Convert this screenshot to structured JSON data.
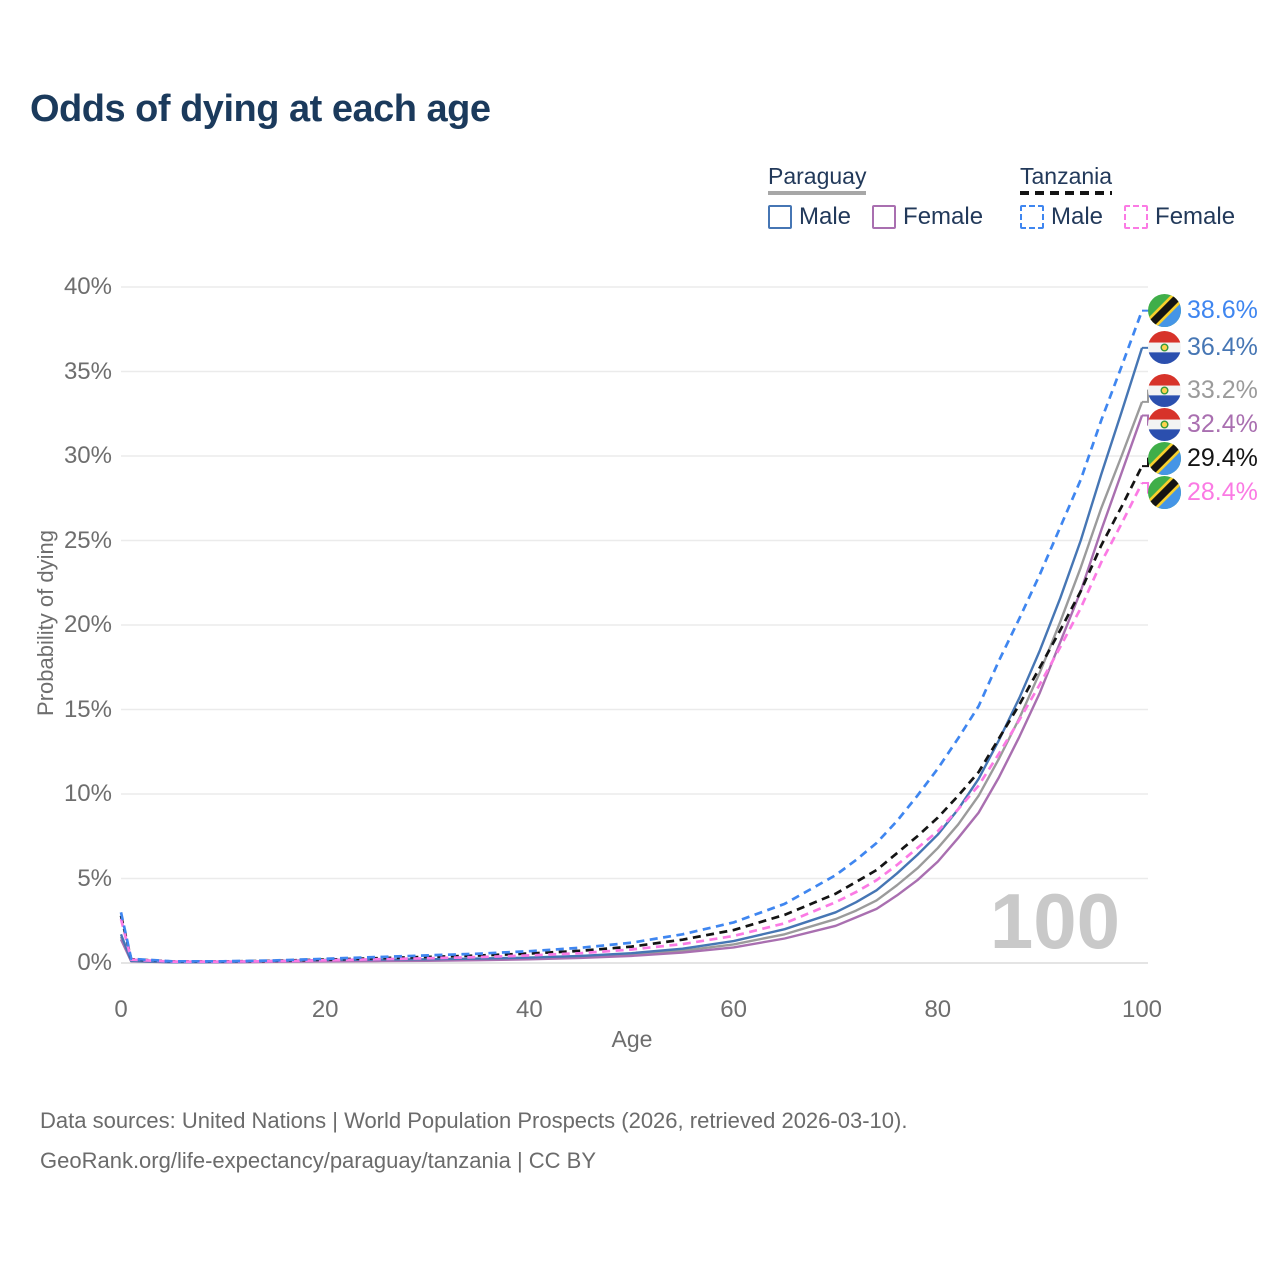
{
  "title": "Odds of dying at each age",
  "watermark_age": "100",
  "footer": {
    "line1": "Data sources: United Nations | World Population Prospects (2026, retrieved 2026-03-10).",
    "line2": "GeoRank.org/life-expectancy/paraguay/tanzania | CC BY"
  },
  "legend": {
    "groups": [
      {
        "country": "Paraguay",
        "line_style": "solid",
        "line_color": "#a7a7a7",
        "items": [
          {
            "label": "Male",
            "color": "#4676b4",
            "dashed": false
          },
          {
            "label": "Female",
            "color": "#a96fb0",
            "dashed": false
          }
        ]
      },
      {
        "country": "Tanzania",
        "line_style": "dashed",
        "line_color": "#141414",
        "items": [
          {
            "label": "Male",
            "color": "#3f86f0",
            "dashed": true
          },
          {
            "label": "Female",
            "color": "#fb7ae4",
            "dashed": true
          }
        ]
      }
    ]
  },
  "chart_data": {
    "type": "line",
    "title": "Odds of dying at each age",
    "xlabel": "Age",
    "ylabel": "Probability of dying",
    "xlim": [
      0,
      100
    ],
    "ylim": [
      0,
      40
    ],
    "x_ticks": [
      0,
      20,
      40,
      60,
      80,
      100
    ],
    "y_ticks": [
      0,
      5,
      10,
      15,
      20,
      25,
      30,
      35,
      40
    ],
    "y_tick_suffix": "%",
    "grid": "horizontal",
    "legend_position": "top-right",
    "age_annotation": "100",
    "ages": [
      0,
      1,
      5,
      10,
      15,
      20,
      25,
      30,
      35,
      40,
      45,
      50,
      55,
      60,
      65,
      70,
      72,
      74,
      76,
      78,
      80,
      82,
      84,
      86,
      88,
      90,
      92,
      94,
      96,
      98,
      100
    ],
    "series": [
      {
        "name": "Paraguay Total",
        "country": "Paraguay",
        "sex": "total",
        "color": "#9b9b9b",
        "dashed": false,
        "end_label": "33.2%",
        "values": [
          1.55,
          0.11,
          0.05,
          0.05,
          0.1,
          0.14,
          0.16,
          0.18,
          0.21,
          0.27,
          0.36,
          0.5,
          0.73,
          1.1,
          1.7,
          2.6,
          3.1,
          3.7,
          4.6,
          5.6,
          6.8,
          8.2,
          9.9,
          12.1,
          14.5,
          17.2,
          20.2,
          23.4,
          26.9,
          30.0,
          33.2
        ]
      },
      {
        "name": "Paraguay Female",
        "country": "Paraguay",
        "sex": "female",
        "color": "#a96fb0",
        "dashed": false,
        "end_label": "32.4%",
        "values": [
          1.4,
          0.1,
          0.04,
          0.04,
          0.07,
          0.09,
          0.11,
          0.13,
          0.17,
          0.22,
          0.3,
          0.42,
          0.62,
          0.92,
          1.45,
          2.2,
          2.7,
          3.2,
          4.0,
          4.9,
          6.0,
          7.4,
          8.9,
          11.0,
          13.4,
          16.0,
          19.0,
          22.0,
          25.6,
          29.0,
          32.4
        ]
      },
      {
        "name": "Paraguay Male",
        "country": "Paraguay",
        "sex": "male",
        "color": "#4676b4",
        "dashed": false,
        "end_label": "36.4%",
        "values": [
          1.7,
          0.12,
          0.05,
          0.06,
          0.12,
          0.18,
          0.2,
          0.22,
          0.26,
          0.32,
          0.42,
          0.58,
          0.85,
          1.3,
          2.0,
          3.0,
          3.6,
          4.3,
          5.3,
          6.4,
          7.6,
          9.1,
          10.9,
          13.2,
          15.7,
          18.5,
          21.6,
          25.0,
          28.9,
          32.6,
          36.4
        ]
      },
      {
        "name": "Tanzania Total",
        "country": "Tanzania",
        "sex": "total",
        "color": "#141414",
        "dashed": true,
        "end_label": "29.4%",
        "values": [
          2.8,
          0.22,
          0.09,
          0.09,
          0.13,
          0.2,
          0.28,
          0.36,
          0.44,
          0.56,
          0.72,
          0.97,
          1.38,
          1.95,
          2.85,
          4.1,
          4.8,
          5.5,
          6.5,
          7.5,
          8.6,
          9.9,
          11.3,
          13.3,
          15.3,
          17.5,
          19.7,
          22.0,
          24.7,
          27.0,
          29.4
        ]
      },
      {
        "name": "Tanzania Female",
        "country": "Tanzania",
        "sex": "female",
        "color": "#fb7ae4",
        "dashed": true,
        "end_label": "28.4%",
        "values": [
          2.6,
          0.2,
          0.08,
          0.08,
          0.11,
          0.16,
          0.22,
          0.28,
          0.35,
          0.45,
          0.58,
          0.8,
          1.12,
          1.6,
          2.35,
          3.6,
          4.2,
          4.9,
          5.8,
          6.8,
          7.8,
          9.1,
          10.5,
          12.4,
          14.4,
          16.5,
          18.7,
          21.0,
          23.7,
          26.0,
          28.4
        ]
      },
      {
        "name": "Tanzania Male",
        "country": "Tanzania",
        "sex": "male",
        "color": "#3f86f0",
        "dashed": true,
        "end_label": "38.6%",
        "values": [
          3.0,
          0.25,
          0.1,
          0.1,
          0.15,
          0.25,
          0.35,
          0.45,
          0.55,
          0.7,
          0.9,
          1.2,
          1.7,
          2.4,
          3.5,
          5.2,
          6.1,
          7.1,
          8.4,
          9.9,
          11.5,
          13.3,
          15.2,
          17.9,
          20.4,
          23.0,
          25.8,
          28.6,
          32.1,
          35.3,
          38.6
        ]
      }
    ]
  }
}
